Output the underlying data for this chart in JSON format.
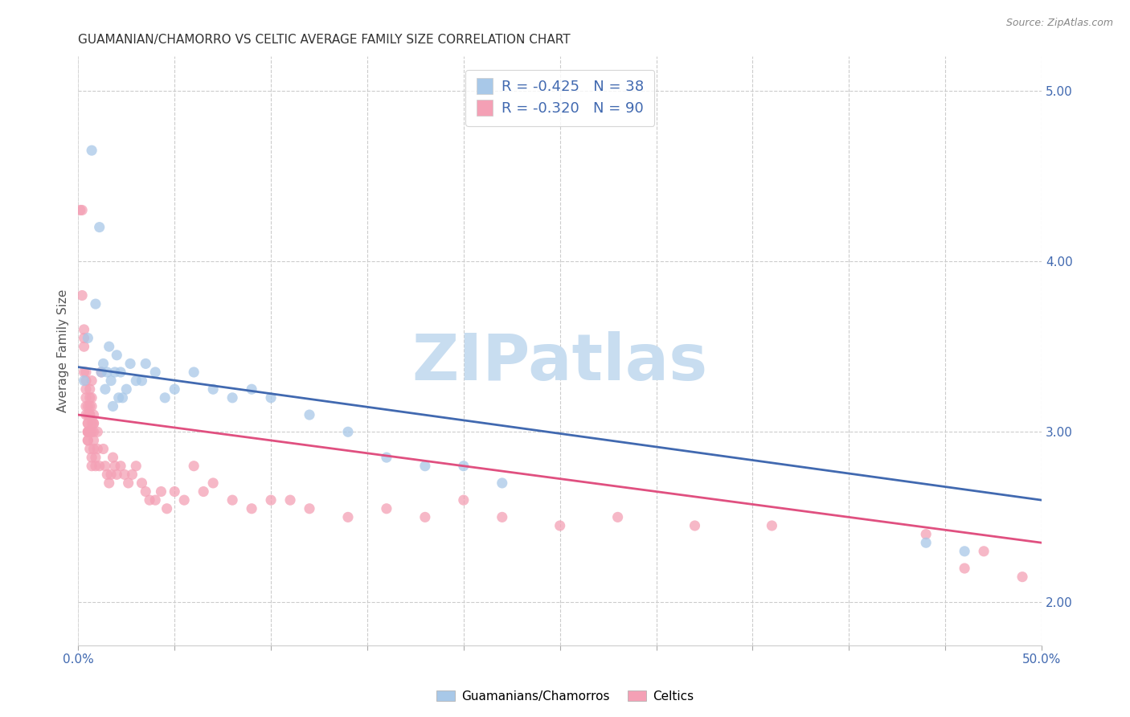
{
  "title": "GUAMANIAN/CHAMORRO VS CELTIC AVERAGE FAMILY SIZE CORRELATION CHART",
  "source": "Source: ZipAtlas.com",
  "ylabel": "Average Family Size",
  "right_yticks": [
    2.0,
    3.0,
    4.0,
    5.0
  ],
  "watermark": "ZIPatlas",
  "legend_blue_r": "-0.425",
  "legend_blue_n": "38",
  "legend_pink_r": "-0.320",
  "legend_pink_n": "90",
  "blue_label": "Guamanians/Chamorros",
  "pink_label": "Celtics",
  "blue_color": "#a8c8e8",
  "pink_color": "#f4a0b5",
  "blue_line_color": "#4169b0",
  "pink_line_color": "#e05080",
  "blue_scatter": [
    [
      0.003,
      3.3
    ],
    [
      0.005,
      3.55
    ],
    [
      0.007,
      4.65
    ],
    [
      0.009,
      3.75
    ],
    [
      0.011,
      4.2
    ],
    [
      0.012,
      3.35
    ],
    [
      0.013,
      3.4
    ],
    [
      0.014,
      3.25
    ],
    [
      0.015,
      3.35
    ],
    [
      0.016,
      3.5
    ],
    [
      0.017,
      3.3
    ],
    [
      0.018,
      3.15
    ],
    [
      0.019,
      3.35
    ],
    [
      0.02,
      3.45
    ],
    [
      0.021,
      3.2
    ],
    [
      0.022,
      3.35
    ],
    [
      0.023,
      3.2
    ],
    [
      0.025,
      3.25
    ],
    [
      0.027,
      3.4
    ],
    [
      0.03,
      3.3
    ],
    [
      0.033,
      3.3
    ],
    [
      0.035,
      3.4
    ],
    [
      0.04,
      3.35
    ],
    [
      0.045,
      3.2
    ],
    [
      0.05,
      3.25
    ],
    [
      0.06,
      3.35
    ],
    [
      0.07,
      3.25
    ],
    [
      0.08,
      3.2
    ],
    [
      0.09,
      3.25
    ],
    [
      0.1,
      3.2
    ],
    [
      0.12,
      3.1
    ],
    [
      0.14,
      3.0
    ],
    [
      0.16,
      2.85
    ],
    [
      0.18,
      2.8
    ],
    [
      0.2,
      2.8
    ],
    [
      0.22,
      2.7
    ],
    [
      0.44,
      2.35
    ],
    [
      0.46,
      2.3
    ]
  ],
  "pink_scatter": [
    [
      0.001,
      4.3
    ],
    [
      0.002,
      4.3
    ],
    [
      0.002,
      3.8
    ],
    [
      0.003,
      3.55
    ],
    [
      0.003,
      3.5
    ],
    [
      0.003,
      3.6
    ],
    [
      0.003,
      3.35
    ],
    [
      0.004,
      3.3
    ],
    [
      0.004,
      3.25
    ],
    [
      0.004,
      3.15
    ],
    [
      0.004,
      3.1
    ],
    [
      0.004,
      3.35
    ],
    [
      0.004,
      3.2
    ],
    [
      0.005,
      3.0
    ],
    [
      0.005,
      3.1
    ],
    [
      0.005,
      3.0
    ],
    [
      0.005,
      2.95
    ],
    [
      0.005,
      3.05
    ],
    [
      0.005,
      3.15
    ],
    [
      0.005,
      3.05
    ],
    [
      0.005,
      3.0
    ],
    [
      0.005,
      2.95
    ],
    [
      0.006,
      3.1
    ],
    [
      0.006,
      3.2
    ],
    [
      0.006,
      3.0
    ],
    [
      0.006,
      2.9
    ],
    [
      0.006,
      3.25
    ],
    [
      0.006,
      3.1
    ],
    [
      0.006,
      3.15
    ],
    [
      0.007,
      3.05
    ],
    [
      0.007,
      2.85
    ],
    [
      0.007,
      2.8
    ],
    [
      0.007,
      3.0
    ],
    [
      0.007,
      3.3
    ],
    [
      0.007,
      3.15
    ],
    [
      0.007,
      3.2
    ],
    [
      0.008,
      2.9
    ],
    [
      0.008,
      3.1
    ],
    [
      0.008,
      3.05
    ],
    [
      0.008,
      3.0
    ],
    [
      0.008,
      3.05
    ],
    [
      0.008,
      2.95
    ],
    [
      0.009,
      2.8
    ],
    [
      0.009,
      2.85
    ],
    [
      0.01,
      3.0
    ],
    [
      0.01,
      2.9
    ],
    [
      0.011,
      2.8
    ],
    [
      0.012,
      3.35
    ],
    [
      0.013,
      2.9
    ],
    [
      0.014,
      2.8
    ],
    [
      0.015,
      2.75
    ],
    [
      0.016,
      2.7
    ],
    [
      0.017,
      2.75
    ],
    [
      0.018,
      2.85
    ],
    [
      0.019,
      2.8
    ],
    [
      0.02,
      2.75
    ],
    [
      0.022,
      2.8
    ],
    [
      0.024,
      2.75
    ],
    [
      0.026,
      2.7
    ],
    [
      0.028,
      2.75
    ],
    [
      0.03,
      2.8
    ],
    [
      0.033,
      2.7
    ],
    [
      0.035,
      2.65
    ],
    [
      0.037,
      2.6
    ],
    [
      0.04,
      2.6
    ],
    [
      0.043,
      2.65
    ],
    [
      0.046,
      2.55
    ],
    [
      0.05,
      2.65
    ],
    [
      0.055,
      2.6
    ],
    [
      0.06,
      2.8
    ],
    [
      0.065,
      2.65
    ],
    [
      0.07,
      2.7
    ],
    [
      0.08,
      2.6
    ],
    [
      0.09,
      2.55
    ],
    [
      0.1,
      2.6
    ],
    [
      0.11,
      2.6
    ],
    [
      0.12,
      2.55
    ],
    [
      0.14,
      2.5
    ],
    [
      0.16,
      2.55
    ],
    [
      0.18,
      2.5
    ],
    [
      0.2,
      2.6
    ],
    [
      0.22,
      2.5
    ],
    [
      0.25,
      2.45
    ],
    [
      0.28,
      2.5
    ],
    [
      0.32,
      2.45
    ],
    [
      0.36,
      2.45
    ],
    [
      0.44,
      2.4
    ],
    [
      0.46,
      2.2
    ],
    [
      0.47,
      2.3
    ],
    [
      0.49,
      2.15
    ]
  ],
  "blue_trendline": [
    [
      0.0,
      3.38
    ],
    [
      0.5,
      2.6
    ]
  ],
  "pink_trendline": [
    [
      0.0,
      3.1
    ],
    [
      0.5,
      2.35
    ]
  ],
  "xlim": [
    0.0,
    0.5
  ],
  "ylim": [
    1.75,
    5.2
  ],
  "background_color": "#ffffff",
  "grid_color": "#cccccc",
  "title_color": "#333333",
  "watermark_color": "#c8ddf0",
  "right_axis_color": "#4169b0",
  "x_tick_positions": [
    0.0,
    0.05,
    0.1,
    0.15,
    0.2,
    0.25,
    0.3,
    0.35,
    0.4,
    0.45,
    0.5
  ]
}
